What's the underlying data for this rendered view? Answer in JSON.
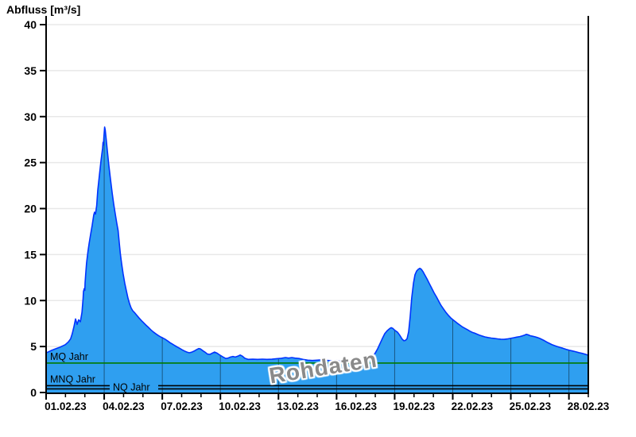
{
  "chart_data": {
    "type": "area",
    "title": "Abfluss [m³/s]",
    "ylabel": "Abfluss [m³/s]",
    "xlabel": "",
    "watermark": "Rohdaten",
    "grid": true,
    "legend_position": "none",
    "ylim": [
      0,
      40
    ],
    "y_ticks": [
      0,
      5,
      10,
      15,
      20,
      25,
      30,
      35,
      40
    ],
    "x_range_days": [
      0,
      28
    ],
    "x_tick_days": [
      0,
      3,
      6,
      9,
      12,
      15,
      18,
      21,
      24,
      27
    ],
    "x_tick_labels": [
      "01.02.23",
      "04.02.23",
      "07.02.23",
      "10.02.23",
      "13.02.23",
      "16.02.23",
      "19.02.23",
      "22.02.23",
      "25.02.23",
      "28.02.23"
    ],
    "reference_lines": [
      {
        "label": "MQ Jahr",
        "value": 3.2,
        "color": "#007a00"
      },
      {
        "label": "MNQ Jahr",
        "value": 0.74,
        "color": "#000000"
      },
      {
        "label": "NQ Jahr",
        "value": 0.39,
        "color": "#000000"
      }
    ],
    "colors": {
      "area_fill": "#2f9ff0",
      "curve_line": "#0033ff",
      "h_grid": "#e8e8e8",
      "v_grid": "rgba(0,0,0,0.45)",
      "axis": "#000000",
      "watermark": "#8a8a8a"
    },
    "series": [
      {
        "name": "Rohdaten",
        "unit": "m³/s",
        "points": [
          [
            0.0,
            4.3
          ],
          [
            0.25,
            4.55
          ],
          [
            0.49,
            4.75
          ],
          [
            0.74,
            4.95
          ],
          [
            0.99,
            5.2
          ],
          [
            1.15,
            5.5
          ],
          [
            1.27,
            5.85
          ],
          [
            1.35,
            6.4
          ],
          [
            1.44,
            7.2
          ],
          [
            1.52,
            8.0
          ],
          [
            1.6,
            7.4
          ],
          [
            1.68,
            7.9
          ],
          [
            1.77,
            7.7
          ],
          [
            1.85,
            8.7
          ],
          [
            1.91,
            10.2
          ],
          [
            1.93,
            11.0
          ],
          [
            1.97,
            11.3
          ],
          [
            2.0,
            11.1
          ],
          [
            2.01,
            11.9
          ],
          [
            2.05,
            13.0
          ],
          [
            2.09,
            14.1
          ],
          [
            2.16,
            15.3
          ],
          [
            2.22,
            16.2
          ],
          [
            2.3,
            17.2
          ],
          [
            2.38,
            18.2
          ],
          [
            2.46,
            19.3
          ],
          [
            2.5,
            19.6
          ],
          [
            2.55,
            19.4
          ],
          [
            2.61,
            20.3
          ],
          [
            2.67,
            22.0
          ],
          [
            2.75,
            23.6
          ],
          [
            2.83,
            25.1
          ],
          [
            2.92,
            26.6
          ],
          [
            2.94,
            27.2
          ],
          [
            2.96,
            26.9
          ],
          [
            2.98,
            27.7
          ],
          [
            3.02,
            28.86
          ],
          [
            3.05,
            28.6
          ],
          [
            3.1,
            27.6
          ],
          [
            3.16,
            26.3
          ],
          [
            3.24,
            24.7
          ],
          [
            3.33,
            23.1
          ],
          [
            3.41,
            21.7
          ],
          [
            3.49,
            20.5
          ],
          [
            3.57,
            19.4
          ],
          [
            3.65,
            18.4
          ],
          [
            3.72,
            17.6
          ],
          [
            3.78,
            16.2
          ],
          [
            3.84,
            15.0
          ],
          [
            3.9,
            14.0
          ],
          [
            3.98,
            12.9
          ],
          [
            4.06,
            11.9
          ],
          [
            4.15,
            11.0
          ],
          [
            4.23,
            10.25
          ],
          [
            4.31,
            9.65
          ],
          [
            4.39,
            9.2
          ],
          [
            4.47,
            8.9
          ],
          [
            4.56,
            8.7
          ],
          [
            4.68,
            8.4
          ],
          [
            4.8,
            8.1
          ],
          [
            4.93,
            7.8
          ],
          [
            5.05,
            7.55
          ],
          [
            5.17,
            7.3
          ],
          [
            5.3,
            7.05
          ],
          [
            5.42,
            6.8
          ],
          [
            5.54,
            6.58
          ],
          [
            5.67,
            6.38
          ],
          [
            5.79,
            6.2
          ],
          [
            5.91,
            6.05
          ],
          [
            6.03,
            5.93
          ],
          [
            6.16,
            5.78
          ],
          [
            6.28,
            5.6
          ],
          [
            6.4,
            5.42
          ],
          [
            6.53,
            5.25
          ],
          [
            6.65,
            5.1
          ],
          [
            6.77,
            4.95
          ],
          [
            6.9,
            4.8
          ],
          [
            7.02,
            4.65
          ],
          [
            7.14,
            4.52
          ],
          [
            7.27,
            4.4
          ],
          [
            7.39,
            4.32
          ],
          [
            7.51,
            4.38
          ],
          [
            7.64,
            4.5
          ],
          [
            7.76,
            4.65
          ],
          [
            7.88,
            4.78
          ],
          [
            7.96,
            4.75
          ],
          [
            8.09,
            4.55
          ],
          [
            8.21,
            4.38
          ],
          [
            8.33,
            4.18
          ],
          [
            8.46,
            4.15
          ],
          [
            8.58,
            4.28
          ],
          [
            8.7,
            4.4
          ],
          [
            8.83,
            4.28
          ],
          [
            8.95,
            4.1
          ],
          [
            9.11,
            3.9
          ],
          [
            9.28,
            3.7
          ],
          [
            9.4,
            3.75
          ],
          [
            9.52,
            3.85
          ],
          [
            9.65,
            3.92
          ],
          [
            9.77,
            3.85
          ],
          [
            9.9,
            3.95
          ],
          [
            10.02,
            4.08
          ],
          [
            10.14,
            3.95
          ],
          [
            10.26,
            3.72
          ],
          [
            10.43,
            3.6
          ],
          [
            10.67,
            3.62
          ],
          [
            10.92,
            3.6
          ],
          [
            11.17,
            3.63
          ],
          [
            11.41,
            3.6
          ],
          [
            11.66,
            3.62
          ],
          [
            11.91,
            3.68
          ],
          [
            12.15,
            3.72
          ],
          [
            12.36,
            3.8
          ],
          [
            12.52,
            3.74
          ],
          [
            12.69,
            3.8
          ],
          [
            12.85,
            3.74
          ],
          [
            13.06,
            3.7
          ],
          [
            13.26,
            3.6
          ],
          [
            13.51,
            3.52
          ],
          [
            13.75,
            3.48
          ],
          [
            14.0,
            3.52
          ],
          [
            14.25,
            3.56
          ],
          [
            14.49,
            3.5
          ],
          [
            14.74,
            3.46
          ],
          [
            14.99,
            3.5
          ],
          [
            15.23,
            3.42
          ],
          [
            15.48,
            3.46
          ],
          [
            15.72,
            3.36
          ],
          [
            15.97,
            3.3
          ],
          [
            16.22,
            3.28
          ],
          [
            16.38,
            3.33
          ],
          [
            16.5,
            3.4
          ],
          [
            16.63,
            3.52
          ],
          [
            16.75,
            3.7
          ],
          [
            16.87,
            3.95
          ],
          [
            17.0,
            4.3
          ],
          [
            17.12,
            4.75
          ],
          [
            17.24,
            5.3
          ],
          [
            17.37,
            5.9
          ],
          [
            17.49,
            6.4
          ],
          [
            17.61,
            6.7
          ],
          [
            17.74,
            6.95
          ],
          [
            17.82,
            7.05
          ],
          [
            17.9,
            6.98
          ],
          [
            18.02,
            6.75
          ],
          [
            18.15,
            6.55
          ],
          [
            18.27,
            6.2
          ],
          [
            18.39,
            5.8
          ],
          [
            18.48,
            5.62
          ],
          [
            18.56,
            5.68
          ],
          [
            18.64,
            5.85
          ],
          [
            18.72,
            6.6
          ],
          [
            18.8,
            8.2
          ],
          [
            18.88,
            10.3
          ],
          [
            18.97,
            11.9
          ],
          [
            19.05,
            12.8
          ],
          [
            19.13,
            13.2
          ],
          [
            19.21,
            13.38
          ],
          [
            19.3,
            13.5
          ],
          [
            19.38,
            13.4
          ],
          [
            19.46,
            13.15
          ],
          [
            19.54,
            12.85
          ],
          [
            19.67,
            12.35
          ],
          [
            19.79,
            11.85
          ],
          [
            19.91,
            11.35
          ],
          [
            20.03,
            10.85
          ],
          [
            20.16,
            10.4
          ],
          [
            20.28,
            9.9
          ],
          [
            20.4,
            9.45
          ],
          [
            20.53,
            9.05
          ],
          [
            20.65,
            8.7
          ],
          [
            20.77,
            8.4
          ],
          [
            20.9,
            8.1
          ],
          [
            21.02,
            7.9
          ],
          [
            21.14,
            7.7
          ],
          [
            21.26,
            7.5
          ],
          [
            21.39,
            7.3
          ],
          [
            21.51,
            7.12
          ],
          [
            21.63,
            6.98
          ],
          [
            21.76,
            6.83
          ],
          [
            21.88,
            6.68
          ],
          [
            22.0,
            6.55
          ],
          [
            22.13,
            6.45
          ],
          [
            22.25,
            6.35
          ],
          [
            22.37,
            6.25
          ],
          [
            22.5,
            6.15
          ],
          [
            22.66,
            6.05
          ],
          [
            22.82,
            5.98
          ],
          [
            22.99,
            5.92
          ],
          [
            23.15,
            5.88
          ],
          [
            23.32,
            5.83
          ],
          [
            23.48,
            5.8
          ],
          [
            23.65,
            5.78
          ],
          [
            23.81,
            5.82
          ],
          [
            23.97,
            5.88
          ],
          [
            24.14,
            5.95
          ],
          [
            24.3,
            6.02
          ],
          [
            24.46,
            6.08
          ],
          [
            24.59,
            6.15
          ],
          [
            24.71,
            6.25
          ],
          [
            24.8,
            6.32
          ],
          [
            24.88,
            6.28
          ],
          [
            25.0,
            6.18
          ],
          [
            25.12,
            6.12
          ],
          [
            25.25,
            6.06
          ],
          [
            25.37,
            5.98
          ],
          [
            25.49,
            5.88
          ],
          [
            25.62,
            5.75
          ],
          [
            25.74,
            5.62
          ],
          [
            25.86,
            5.48
          ],
          [
            25.99,
            5.35
          ],
          [
            26.11,
            5.22
          ],
          [
            26.23,
            5.12
          ],
          [
            26.36,
            5.02
          ],
          [
            26.52,
            4.92
          ],
          [
            26.68,
            4.82
          ],
          [
            26.85,
            4.7
          ],
          [
            27.01,
            4.6
          ],
          [
            27.18,
            4.52
          ],
          [
            27.34,
            4.44
          ],
          [
            27.51,
            4.34
          ],
          [
            27.67,
            4.26
          ],
          [
            27.84,
            4.16
          ],
          [
            28.0,
            4.05
          ]
        ]
      }
    ]
  }
}
